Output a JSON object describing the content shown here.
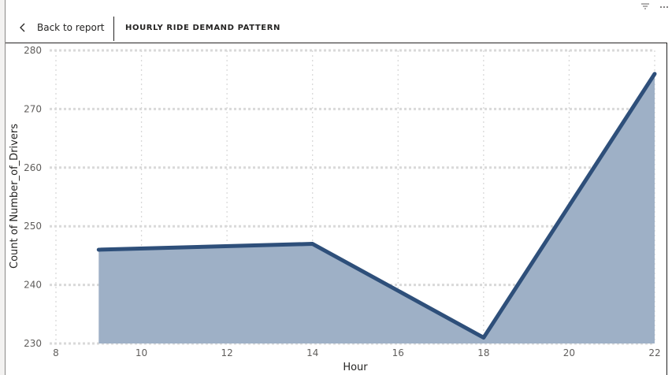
{
  "header": {
    "back_label": "Back to report",
    "title": "HOURLY RIDE DEMAND PATTERN"
  },
  "icons": {
    "back": "chevron-left-icon",
    "filter": "filter-icon",
    "more": "more-options-icon"
  },
  "colors": {
    "line": "#2e4f7a",
    "area": "#9eb0c6",
    "grid": "#d9d9d9"
  },
  "chart_data": {
    "type": "area",
    "xlabel": "Hour",
    "ylabel": "Count of Number_of_Drivers",
    "x": [
      9,
      14,
      18,
      22
    ],
    "y": [
      246,
      247,
      231,
      276
    ],
    "xlim": [
      8,
      22
    ],
    "ylim": [
      230,
      280
    ],
    "xticks": [
      8,
      10,
      12,
      14,
      16,
      18,
      20,
      22
    ],
    "yticks": [
      230,
      240,
      250,
      260,
      270,
      280
    ],
    "grid": true
  }
}
